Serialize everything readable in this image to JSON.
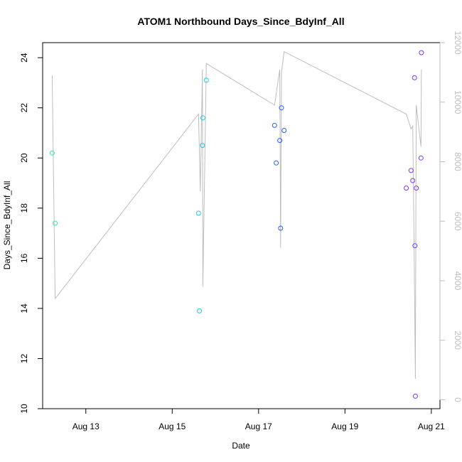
{
  "chart_data": {
    "type": "scatter",
    "title": "ATOM1 Northbound Days_Since_BdyInf_All",
    "xlabel": "Date",
    "ylabel": "Days_Since_BdyInf_All",
    "x_ticks": [
      "Aug 13",
      "Aug 15",
      "Aug 17",
      "Aug 19",
      "Aug 21"
    ],
    "x_tick_values": [
      13,
      15,
      17,
      19,
      21
    ],
    "xlim": [
      12.0,
      21.2
    ],
    "ylim": [
      10,
      24.6
    ],
    "y_ticks": [
      10,
      12,
      14,
      16,
      18,
      20,
      22,
      24
    ],
    "y2lim": [
      -300,
      12000
    ],
    "y2_ticks": [
      0,
      2000,
      4000,
      6000,
      8000,
      10000,
      12000
    ],
    "colors": {
      "frame": "#000000",
      "secondary_line": "#bebebe",
      "secondary_axis": "#bebebe"
    },
    "series": [
      {
        "color": "#2ee8a5",
        "points": [
          [
            12.22,
            20.2
          ],
          [
            12.29,
            17.4
          ]
        ]
      },
      {
        "color": "#1ec8f0",
        "points": [
          [
            15.61,
            17.8
          ],
          [
            15.63,
            13.9
          ],
          [
            15.7,
            20.5
          ],
          [
            15.71,
            21.6
          ],
          [
            15.79,
            23.1
          ]
        ]
      },
      {
        "color": "#2a5cff",
        "points": [
          [
            17.37,
            21.3
          ],
          [
            17.41,
            19.8
          ],
          [
            17.49,
            20.7
          ],
          [
            17.51,
            17.2
          ],
          [
            17.53,
            22.0
          ],
          [
            17.59,
            21.1
          ]
        ]
      },
      {
        "color": "#7b36ff",
        "points": [
          [
            20.42,
            18.8
          ],
          [
            20.53,
            19.5
          ],
          [
            20.57,
            19.1
          ],
          [
            20.61,
            23.2
          ],
          [
            20.62,
            16.5
          ],
          [
            20.63,
            10.5
          ],
          [
            20.65,
            18.8
          ],
          [
            20.76,
            20.0
          ],
          [
            20.77,
            24.2
          ]
        ]
      }
    ],
    "secondary_series": {
      "type": "line",
      "axis": "right",
      "color": "#bebebe",
      "points": [
        [
          12.22,
          10900
        ],
        [
          12.29,
          3400
        ],
        [
          15.61,
          9600
        ],
        [
          15.65,
          7000
        ],
        [
          15.7,
          11100
        ],
        [
          15.71,
          3800
        ],
        [
          15.79,
          11300
        ],
        [
          17.37,
          9900
        ],
        [
          17.49,
          11100
        ],
        [
          17.51,
          5100
        ],
        [
          17.53,
          11000
        ],
        [
          17.59,
          11700
        ],
        [
          20.42,
          9600
        ],
        [
          20.53,
          9100
        ],
        [
          20.57,
          9200
        ],
        [
          20.6,
          5400
        ],
        [
          20.63,
          700
        ],
        [
          20.65,
          9900
        ],
        [
          20.76,
          8500
        ],
        [
          20.77,
          11100
        ]
      ]
    }
  }
}
